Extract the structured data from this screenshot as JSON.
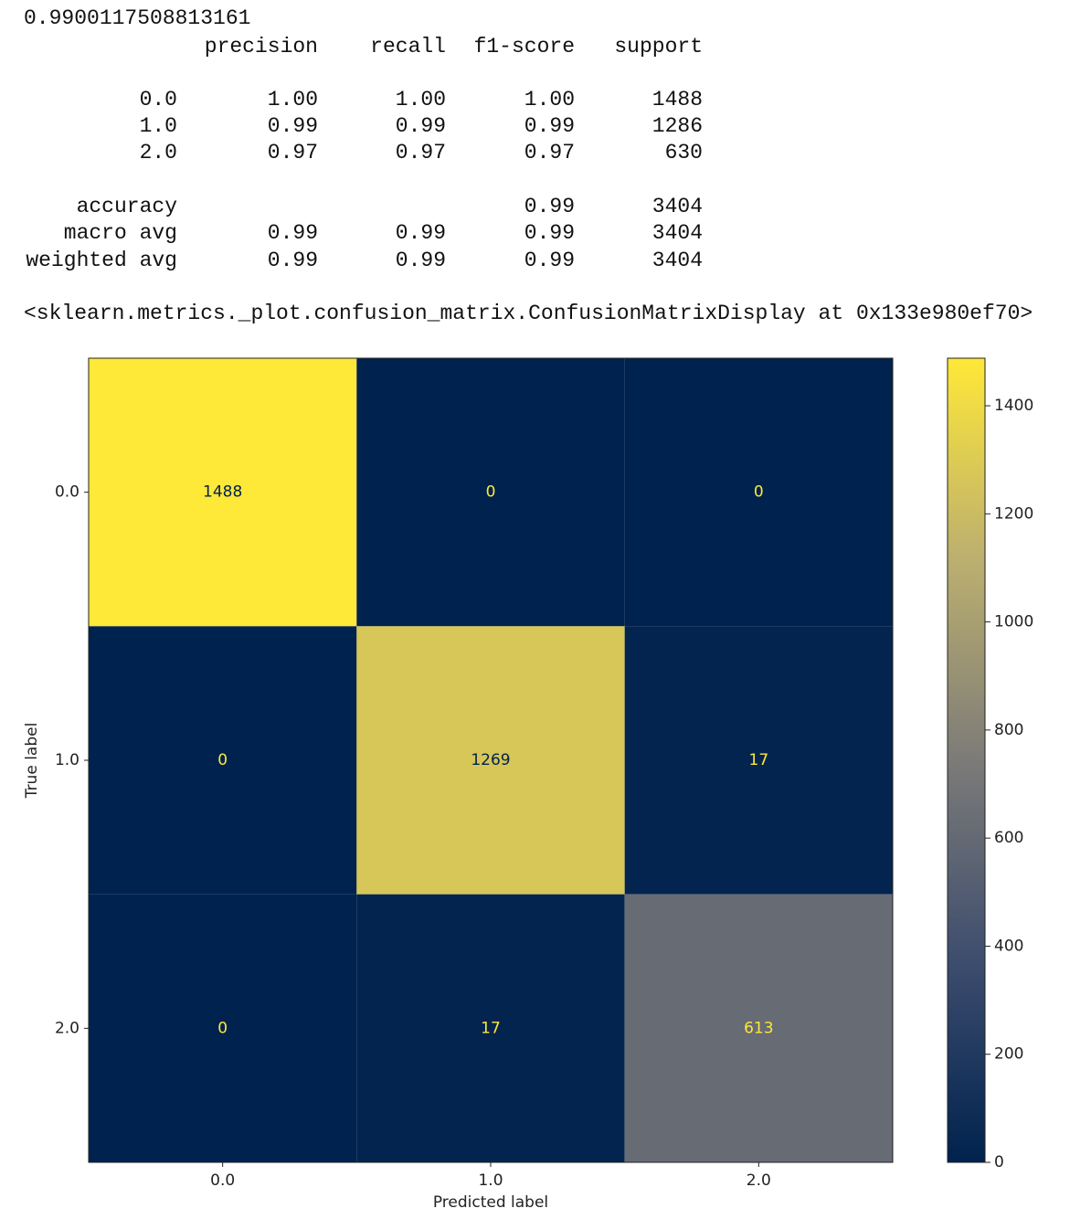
{
  "score": "0.9900117508813161",
  "report": {
    "columns": [
      "precision",
      "recall",
      "f1-score",
      "support"
    ],
    "rows": [
      {
        "label": "0.0",
        "precision": "1.00",
        "recall": "1.00",
        "f1-score": "1.00",
        "support": "1488"
      },
      {
        "label": "1.0",
        "precision": "0.99",
        "recall": "0.99",
        "f1-score": "0.99",
        "support": "1286"
      },
      {
        "label": "2.0",
        "precision": "0.97",
        "recall": "0.97",
        "f1-score": "0.97",
        "support": "630"
      },
      {
        "label": "accuracy",
        "f1-score": "0.99",
        "support": "3404"
      },
      {
        "label": "macro avg",
        "precision": "0.99",
        "recall": "0.99",
        "f1-score": "0.99",
        "support": "3404"
      },
      {
        "label": "weighted avg",
        "precision": "0.99",
        "recall": "0.99",
        "f1-score": "0.99",
        "support": "3404"
      }
    ]
  },
  "repr": "<sklearn.metrics._plot.confusion_matrix.ConfusionMatrixDisplay at 0x133e980ef70>",
  "chart_data": {
    "type": "heatmap",
    "x_label": "Predicted label",
    "y_label": "True label",
    "x_categories": [
      "0.0",
      "1.0",
      "2.0"
    ],
    "y_categories": [
      "0.0",
      "1.0",
      "2.0"
    ],
    "values": [
      [
        1488,
        0,
        0
      ],
      [
        0,
        1269,
        17
      ],
      [
        0,
        17,
        613
      ]
    ],
    "colormap": "cividis",
    "clim": [
      0,
      1488
    ],
    "cticks": [
      0,
      200,
      400,
      600,
      800,
      1000,
      1200,
      1400
    ]
  }
}
